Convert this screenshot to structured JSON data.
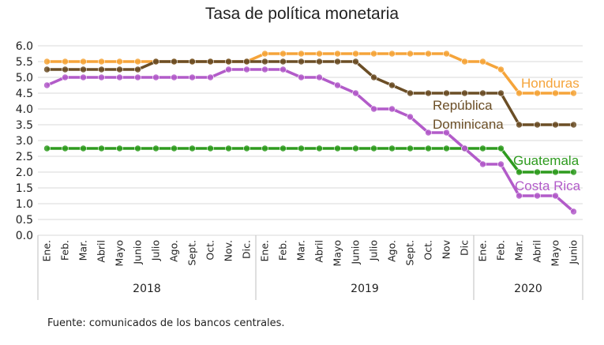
{
  "chart_data": {
    "type": "line",
    "title": "Tasa de política monetaria",
    "ylim": [
      0,
      6
    ],
    "yticks": [
      "0.0",
      "0.5",
      "1.0",
      "1.5",
      "2.0",
      "2.5",
      "3.0",
      "3.5",
      "4.0",
      "4.5",
      "5.0",
      "5.5",
      "6.0"
    ],
    "categories": [
      "Ene.",
      "Feb.",
      "Mar.",
      "Abril",
      "Mayo",
      "Junio",
      "Julio",
      "Ago.",
      "Sept.",
      "Oct.",
      "Nov.",
      "Dic.",
      "Ene.",
      "Feb.",
      "Mar.",
      "Abril",
      "Mayo",
      "Junio",
      "Julio",
      "Ago.",
      "Sept.",
      "Oct.",
      "Nov",
      "Dic",
      "Ene.",
      "Feb.",
      "Mar.",
      "Abril",
      "Mayo",
      "Junio"
    ],
    "year_groups": [
      {
        "label": "2018",
        "count": 12
      },
      {
        "label": "2019",
        "count": 12
      },
      {
        "label": "2020",
        "count": 6
      }
    ],
    "grid": true,
    "series": [
      {
        "name": "Honduras",
        "color": "#F5A43A",
        "values": [
          5.5,
          5.5,
          5.5,
          5.5,
          5.5,
          5.5,
          5.5,
          5.5,
          5.5,
          5.5,
          5.5,
          5.5,
          5.75,
          5.75,
          5.75,
          5.75,
          5.75,
          5.75,
          5.75,
          5.75,
          5.75,
          5.75,
          5.75,
          5.5,
          5.5,
          5.25,
          4.5,
          4.5,
          4.5,
          4.5
        ]
      },
      {
        "name": "República Dominicana",
        "color": "#6B4E26",
        "values": [
          5.25,
          5.25,
          5.25,
          5.25,
          5.25,
          5.25,
          5.5,
          5.5,
          5.5,
          5.5,
          5.5,
          5.5,
          5.5,
          5.5,
          5.5,
          5.5,
          5.5,
          5.5,
          5.0,
          4.75,
          4.5,
          4.5,
          4.5,
          4.5,
          4.5,
          4.5,
          3.5,
          3.5,
          3.5,
          3.5
        ]
      },
      {
        "name": "Guatemala",
        "color": "#2E9B1F",
        "values": [
          2.75,
          2.75,
          2.75,
          2.75,
          2.75,
          2.75,
          2.75,
          2.75,
          2.75,
          2.75,
          2.75,
          2.75,
          2.75,
          2.75,
          2.75,
          2.75,
          2.75,
          2.75,
          2.75,
          2.75,
          2.75,
          2.75,
          2.75,
          2.75,
          2.75,
          2.75,
          2.0,
          2.0,
          2.0,
          2.0
        ]
      },
      {
        "name": "Costa Rica",
        "color": "#B25BC9",
        "values": [
          4.75,
          5.0,
          5.0,
          5.0,
          5.0,
          5.0,
          5.0,
          5.0,
          5.0,
          5.0,
          5.25,
          5.25,
          5.25,
          5.25,
          5.0,
          5.0,
          4.75,
          4.5,
          4.0,
          4.0,
          3.75,
          3.25,
          3.25,
          2.75,
          2.25,
          2.25,
          1.25,
          1.25,
          1.25,
          0.75
        ]
      }
    ],
    "labels": [
      {
        "text": "Honduras",
        "color": "#F5A43A"
      },
      {
        "text": "República",
        "color": "#6B4E26"
      },
      {
        "text": "Dominicana",
        "color": "#6B4E26"
      },
      {
        "text": "Guatemala",
        "color": "#2E9B1F"
      },
      {
        "text": "Costa Rica",
        "color": "#B25BC9"
      }
    ]
  },
  "source_note": "Fuente: comunicados de los bancos centrales."
}
